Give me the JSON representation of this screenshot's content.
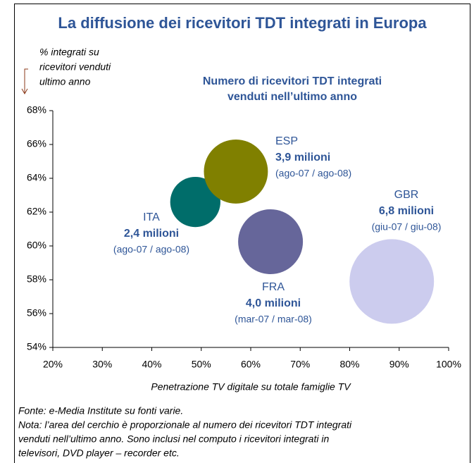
{
  "chart_data": {
    "type": "bubble",
    "title": "La diffusione dei ricevitori TDT integrati in Europa",
    "subtitle": [
      "Numero di ricevitori TDT integrati",
      "venduti nell’ultimo anno"
    ],
    "ylabel": [
      "% integrati su",
      "ricevitori venduti",
      "ultimo anno"
    ],
    "xlabel": "Penetrazione  TV digitale su totale famiglie TV",
    "categories": [
      "ITA",
      "ESP",
      "FRA",
      "GBR"
    ],
    "x": [
      48.8,
      57,
      64,
      88.5
    ],
    "values": [
      62.6,
      64.4,
      60.25,
      57.9
    ],
    "sizes": [
      2.4,
      3.9,
      4.0,
      6.8
    ],
    "size_labels": [
      "2,4 milioni",
      "3,9 milioni",
      "4,0 milioni",
      "6,8 milioni"
    ],
    "periods": [
      "(ago-07 / ago-08)",
      "(ago-07 / ago-08)",
      "(mar-07 / mar-08)",
      "(giu-07 / giu-08)"
    ],
    "colors": [
      "#006d6a",
      "#808000",
      "#66669a",
      "#ccccee"
    ],
    "xlim": [
      20,
      100
    ],
    "xticks": [
      {
        "value": 20,
        "label": "20%"
      },
      {
        "value": 30,
        "label": "30%"
      },
      {
        "value": 40,
        "label": "40%"
      },
      {
        "value": 50,
        "label": "50%"
      },
      {
        "value": 60,
        "label": "60%"
      },
      {
        "value": 70,
        "label": "70%"
      },
      {
        "value": 80,
        "label": "80%"
      },
      {
        "value": 90,
        "label": "90%"
      },
      {
        "value": 100,
        "label": "100%"
      }
    ],
    "ylim": [
      54,
      68
    ],
    "yticks": [
      {
        "value": 54,
        "label": "54%"
      },
      {
        "value": 56,
        "label": "56%"
      },
      {
        "value": 58,
        "label": "58%"
      },
      {
        "value": 60,
        "label": "60%"
      },
      {
        "value": 62,
        "label": "62%"
      },
      {
        "value": 64,
        "label": "64%"
      },
      {
        "value": 66,
        "label": "66%"
      },
      {
        "value": 68,
        "label": "68%"
      }
    ],
    "notes": [
      "Fonte: e-Media Institute su fonti varie.",
      "Nota: l’area del cerchio è proporzionale al numero dei ricevitori TDT integrati",
      "venduti nell’ultimo anno. Sono inclusi nel computo i ricevitori integrati in",
      "televisori, DVD player – recorder etc."
    ]
  }
}
